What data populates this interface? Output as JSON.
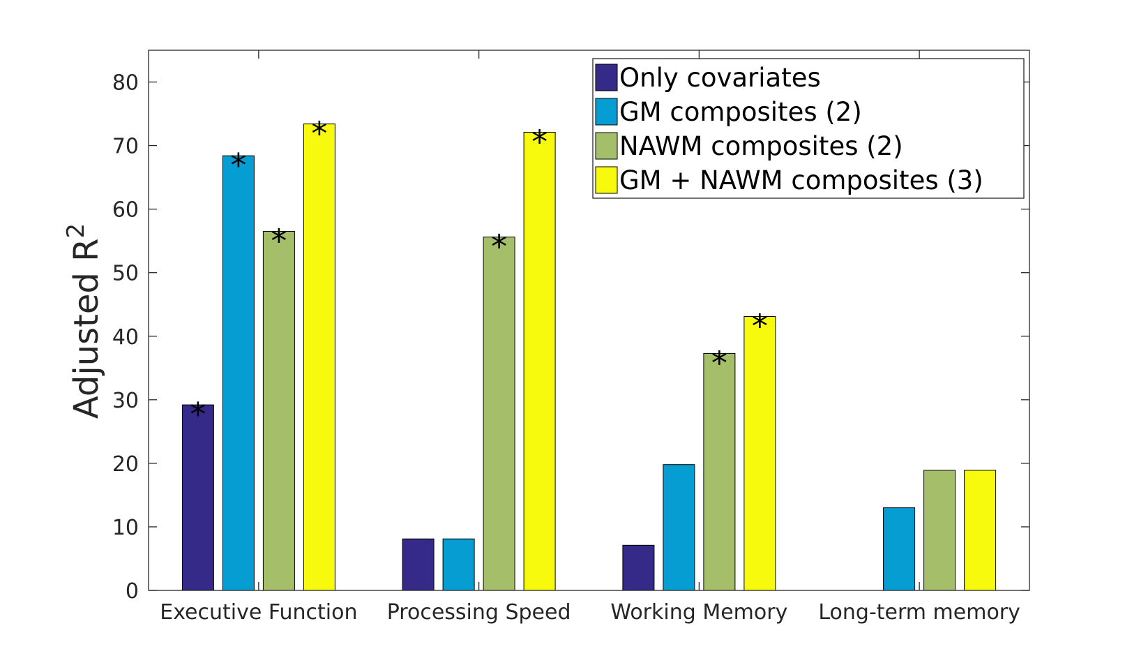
{
  "chart_data": {
    "type": "bar",
    "title": "",
    "xlabel": "",
    "ylabel": "Adjusted R",
    "ylabel_superscript": "2",
    "ylim": [
      0,
      85
    ],
    "yticks": [
      0,
      10,
      20,
      30,
      40,
      50,
      60,
      70,
      80
    ],
    "grid": false,
    "legend_position": "top-right",
    "categories": [
      "Executive Function",
      "Processing Speed",
      "Working Memory",
      "Long-term memory"
    ],
    "significance_marker": "*",
    "series": [
      {
        "name": "Only covariates",
        "color": "#352A87",
        "values": [
          29.2,
          8.1,
          7.1,
          0
        ],
        "significant": [
          true,
          false,
          false,
          false
        ]
      },
      {
        "name": "GM composites (2)",
        "color": "#069DD2",
        "values": [
          68.4,
          8.1,
          19.8,
          13.0
        ],
        "significant": [
          true,
          false,
          false,
          false
        ]
      },
      {
        "name": "NAWM composites (2)",
        "color": "#A5BE6A",
        "values": [
          56.5,
          55.6,
          37.3,
          18.9
        ],
        "significant": [
          true,
          true,
          true,
          false
        ]
      },
      {
        "name": "GM + NAWM composites (3)",
        "color": "#F8FA0D",
        "values": [
          73.4,
          72.1,
          43.1,
          18.9
        ],
        "significant": [
          true,
          true,
          true,
          false
        ]
      }
    ]
  }
}
